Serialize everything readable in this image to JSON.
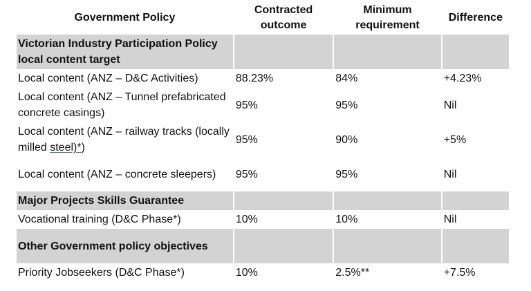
{
  "headers": [
    "Government Policy",
    "Contracted outcome",
    "Minimum requirement",
    "Difference"
  ],
  "sections": [
    {
      "title": "Victorian Industry Participation Policy local content target",
      "rows": [
        {
          "policy": "Local content (ANZ – D&C Activities)",
          "contracted": "88.23%",
          "minimum": "84%",
          "difference": "+4.23%"
        },
        {
          "policy": "Local content (ANZ – Tunnel prefabricated concrete casings)",
          "contracted": "95%",
          "minimum": "95%",
          "difference": "Nil"
        },
        {
          "policy_prefix": "Local content (ANZ – railway tracks (locally milled ",
          "policy_link": "steel)*",
          "policy_suffix": ")",
          "contracted": "95%",
          "minimum": "90%",
          "difference": "+5%"
        },
        {
          "policy": "Local content (ANZ – concrete sleepers)",
          "contracted": "95%",
          "minimum": "95%",
          "difference": "Nil"
        }
      ]
    },
    {
      "title": "Major Projects Skills Guarantee",
      "rows": [
        {
          "policy": "Vocational training (D&C Phase*)",
          "contracted": "10%",
          "minimum": "10%",
          "difference": "Nil"
        }
      ]
    },
    {
      "title": "Other Government policy objectives",
      "rows": [
        {
          "policy": "Priority Jobseekers (D&C Phase*)",
          "contracted": "10%",
          "minimum": "2.5%**",
          "difference": "+7.5%"
        }
      ]
    }
  ]
}
